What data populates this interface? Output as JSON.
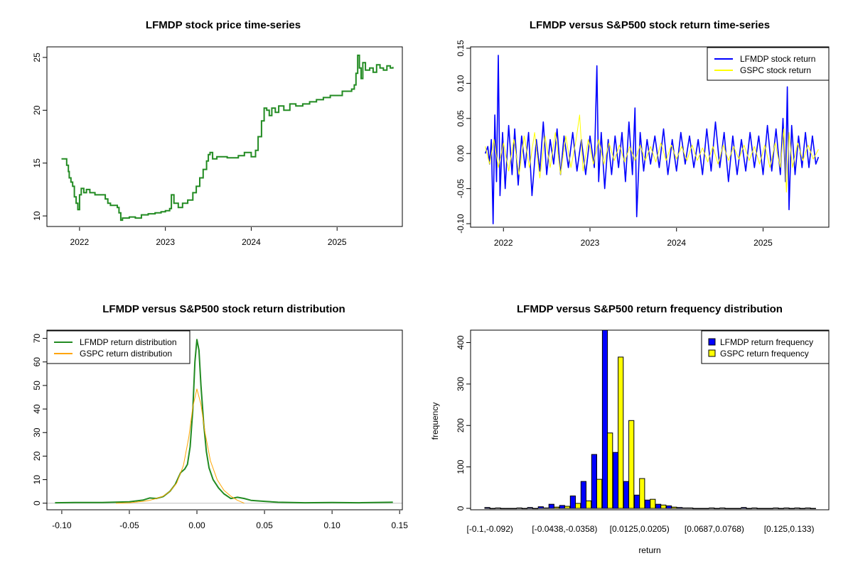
{
  "chart_data": [
    {
      "id": "price",
      "type": "line",
      "title": "LFMDP stock price time-series",
      "xlabel": "",
      "ylabel": "",
      "xlim": [
        2021.62,
        2025.76
      ],
      "ylim": [
        9.0,
        26.0
      ],
      "x_ticks": [
        {
          "v": 2022,
          "label": "2022"
        },
        {
          "v": 2023,
          "label": "2023"
        },
        {
          "v": 2024,
          "label": "2024"
        },
        {
          "v": 2025,
          "label": "2025"
        }
      ],
      "y_ticks": [
        {
          "v": 10,
          "label": "10"
        },
        {
          "v": 15,
          "label": "15"
        },
        {
          "v": 20,
          "label": "20"
        },
        {
          "v": 25,
          "label": "25"
        }
      ],
      "series": [
        {
          "name": "LFMDP price",
          "color": "#228B22",
          "x": [
            2021.79,
            2021.83,
            2021.85,
            2021.87,
            2021.88,
            2021.9,
            2021.92,
            2021.94,
            2021.96,
            2021.98,
            2022.0,
            2022.02,
            2022.05,
            2022.08,
            2022.12,
            2022.18,
            2022.24,
            2022.3,
            2022.33,
            2022.36,
            2022.4,
            2022.44,
            2022.46,
            2022.48,
            2022.5,
            2022.53,
            2022.58,
            2022.65,
            2022.72,
            2022.8,
            2022.88,
            2022.95,
            2023.0,
            2023.05,
            2023.07,
            2023.1,
            2023.15,
            2023.2,
            2023.26,
            2023.32,
            2023.36,
            2023.4,
            2023.44,
            2023.48,
            2023.5,
            2023.52,
            2023.55,
            2023.6,
            2023.66,
            2023.72,
            2023.78,
            2023.85,
            2023.92,
            2024.0,
            2024.05,
            2024.08,
            2024.12,
            2024.15,
            2024.18,
            2024.21,
            2024.24,
            2024.28,
            2024.32,
            2024.38,
            2024.45,
            2024.52,
            2024.6,
            2024.68,
            2024.76,
            2024.84,
            2024.92,
            2025.0,
            2025.06,
            2025.12,
            2025.17,
            2025.2,
            2025.22,
            2025.24,
            2025.26,
            2025.28,
            2025.3,
            2025.33,
            2025.38,
            2025.42,
            2025.46,
            2025.5,
            2025.54,
            2025.58,
            2025.62,
            2025.65
          ],
          "y": [
            15.4,
            15.4,
            14.8,
            14.2,
            13.6,
            13.2,
            12.8,
            11.8,
            11.2,
            10.6,
            12.0,
            12.6,
            12.2,
            12.5,
            12.2,
            12.0,
            12.0,
            11.6,
            11.2,
            11.0,
            11.0,
            10.8,
            10.3,
            9.6,
            9.8,
            9.8,
            9.9,
            9.8,
            10.1,
            10.2,
            10.3,
            10.4,
            10.5,
            10.7,
            12.0,
            11.2,
            10.8,
            11.2,
            11.5,
            12.2,
            12.8,
            13.6,
            14.4,
            15.2,
            15.8,
            16.0,
            15.4,
            15.6,
            15.6,
            15.5,
            15.5,
            15.7,
            16.0,
            15.6,
            16.2,
            17.5,
            19.0,
            20.2,
            20.0,
            19.5,
            20.2,
            19.8,
            20.4,
            20.0,
            20.6,
            20.4,
            20.6,
            20.8,
            21.0,
            21.2,
            21.4,
            21.4,
            21.8,
            21.8,
            22.0,
            22.4,
            23.5,
            25.2,
            24.0,
            23.0,
            24.5,
            23.8,
            24.0,
            23.6,
            24.3,
            24.0,
            23.8,
            24.2,
            24.0,
            24.1
          ]
        }
      ]
    },
    {
      "id": "returns",
      "type": "line",
      "title": "LFMDP versus S&P500 stock return time-series",
      "xlabel": "",
      "ylabel": "",
      "xlim": [
        2021.62,
        2025.76
      ],
      "ylim": [
        -0.105,
        0.152
      ],
      "x_ticks": [
        {
          "v": 2022,
          "label": "2022"
        },
        {
          "v": 2023,
          "label": "2023"
        },
        {
          "v": 2024,
          "label": "2024"
        },
        {
          "v": 2025,
          "label": "2025"
        }
      ],
      "y_ticks": [
        {
          "v": -0.1,
          "label": "-0.10"
        },
        {
          "v": -0.05,
          "label": "-0.05"
        },
        {
          "v": 0.0,
          "label": "0.00"
        },
        {
          "v": 0.05,
          "label": "0.05"
        },
        {
          "v": 0.1,
          "label": "0.10"
        },
        {
          "v": 0.15,
          "label": "0.15"
        }
      ],
      "legend": {
        "position": "top-right",
        "entries": [
          {
            "label": "LFMDP stock return",
            "color": "#0000FF"
          },
          {
            "label": "GSPC stock return",
            "color": "#FFFF00"
          }
        ]
      },
      "series": [
        {
          "name": "LFMDP stock return",
          "color": "#0000FF",
          "x": [
            2021.79,
            2021.82,
            2021.84,
            2021.86,
            2021.88,
            2021.9,
            2021.92,
            2021.94,
            2021.96,
            2021.99,
            2022.02,
            2022.06,
            2022.1,
            2022.13,
            2022.17,
            2022.21,
            2022.25,
            2022.29,
            2022.33,
            2022.38,
            2022.42,
            2022.46,
            2022.5,
            2022.54,
            2022.58,
            2022.62,
            2022.66,
            2022.7,
            2022.75,
            2022.8,
            2022.85,
            2022.9,
            2022.95,
            2023.0,
            2023.05,
            2023.08,
            2023.1,
            2023.13,
            2023.17,
            2023.21,
            2023.25,
            2023.29,
            2023.33,
            2023.37,
            2023.41,
            2023.45,
            2023.49,
            2023.52,
            2023.54,
            2023.58,
            2023.62,
            2023.66,
            2023.7,
            2023.75,
            2023.8,
            2023.85,
            2023.9,
            2023.95,
            2024.0,
            2024.05,
            2024.1,
            2024.15,
            2024.2,
            2024.25,
            2024.3,
            2024.35,
            2024.4,
            2024.45,
            2024.5,
            2024.55,
            2024.6,
            2024.65,
            2024.7,
            2024.75,
            2024.8,
            2024.85,
            2024.9,
            2024.95,
            2025.0,
            2025.05,
            2025.1,
            2025.15,
            2025.2,
            2025.23,
            2025.26,
            2025.28,
            2025.3,
            2025.33,
            2025.37,
            2025.41,
            2025.45,
            2025.49,
            2025.53,
            2025.57,
            2025.61,
            2025.64
          ],
          "y": [
            0.0,
            0.01,
            -0.015,
            0.02,
            -0.1,
            0.055,
            -0.04,
            0.14,
            -0.06,
            0.03,
            -0.05,
            0.04,
            -0.03,
            0.035,
            -0.045,
            0.025,
            -0.02,
            0.03,
            -0.06,
            0.02,
            -0.025,
            0.045,
            -0.03,
            0.02,
            -0.015,
            0.035,
            -0.03,
            0.025,
            -0.02,
            0.03,
            -0.025,
            0.02,
            -0.03,
            0.025,
            -0.02,
            0.125,
            -0.04,
            0.03,
            -0.05,
            0.02,
            -0.03,
            0.025,
            -0.02,
            0.03,
            -0.04,
            0.045,
            -0.03,
            0.065,
            -0.09,
            0.03,
            -0.025,
            0.02,
            -0.015,
            0.025,
            -0.02,
            0.035,
            -0.03,
            0.02,
            -0.025,
            0.03,
            -0.015,
            0.025,
            -0.02,
            0.02,
            -0.03,
            0.035,
            -0.025,
            0.045,
            -0.02,
            0.03,
            -0.04,
            0.025,
            -0.03,
            0.02,
            -0.025,
            0.03,
            -0.02,
            0.025,
            -0.03,
            0.04,
            -0.025,
            0.035,
            -0.03,
            0.05,
            -0.04,
            0.095,
            -0.08,
            0.04,
            -0.03,
            0.025,
            -0.02,
            0.03,
            -0.02,
            0.025,
            -0.015,
            -0.005
          ]
        },
        {
          "name": "GSPC stock return",
          "color": "#FFFF00",
          "x": [
            2021.79,
            2021.84,
            2021.89,
            2021.94,
            2022.0,
            2022.06,
            2022.12,
            2022.18,
            2022.24,
            2022.3,
            2022.36,
            2022.42,
            2022.48,
            2022.54,
            2022.6,
            2022.66,
            2022.72,
            2022.78,
            2022.84,
            2022.88,
            2022.92,
            2022.98,
            2023.04,
            2023.1,
            2023.16,
            2023.22,
            2023.28,
            2023.34,
            2023.4,
            2023.46,
            2023.52,
            2023.58,
            2023.64,
            2023.7,
            2023.76,
            2023.82,
            2023.88,
            2023.94,
            2024.0,
            2024.06,
            2024.12,
            2024.18,
            2024.24,
            2024.3,
            2024.36,
            2024.42,
            2024.48,
            2024.54,
            2024.6,
            2024.66,
            2024.72,
            2024.78,
            2024.84,
            2024.9,
            2024.96,
            2025.02,
            2025.08,
            2025.14,
            2025.2,
            2025.24,
            2025.27,
            2025.3,
            2025.34,
            2025.4,
            2025.46,
            2025.52,
            2025.58,
            2025.64
          ],
          "y": [
            0.01,
            -0.015,
            0.02,
            -0.02,
            0.015,
            -0.025,
            0.02,
            -0.03,
            0.025,
            -0.02,
            0.03,
            -0.035,
            0.025,
            -0.02,
            0.03,
            -0.03,
            0.025,
            -0.02,
            0.02,
            0.055,
            -0.025,
            0.02,
            -0.015,
            0.02,
            -0.015,
            0.015,
            -0.01,
            0.012,
            -0.012,
            0.01,
            -0.01,
            0.012,
            -0.01,
            0.01,
            -0.012,
            0.015,
            -0.01,
            0.012,
            -0.008,
            0.01,
            -0.01,
            0.012,
            -0.01,
            0.008,
            -0.012,
            0.01,
            -0.015,
            0.012,
            -0.01,
            0.01,
            -0.008,
            0.012,
            -0.01,
            0.01,
            -0.015,
            0.012,
            -0.02,
            0.015,
            -0.02,
            0.035,
            -0.055,
            0.03,
            -0.02,
            0.015,
            -0.01,
            0.012,
            -0.008,
            0.006
          ]
        }
      ]
    },
    {
      "id": "density",
      "type": "line",
      "title": "LFMDP versus S&P500 stock return distribution",
      "xlabel": "",
      "ylabel": "",
      "xlim": [
        -0.111,
        0.152
      ],
      "ylim": [
        -2.8,
        73.5
      ],
      "x_ticks": [
        {
          "v": -0.1,
          "label": "-0.10"
        },
        {
          "v": -0.05,
          "label": "-0.05"
        },
        {
          "v": 0.0,
          "label": "0.00"
        },
        {
          "v": 0.05,
          "label": "0.05"
        },
        {
          "v": 0.1,
          "label": "0.10"
        },
        {
          "v": 0.15,
          "label": "0.15"
        }
      ],
      "y_ticks": [
        {
          "v": 0,
          "label": "0"
        },
        {
          "v": 10,
          "label": "10"
        },
        {
          "v": 20,
          "label": "20"
        },
        {
          "v": 30,
          "label": "30"
        },
        {
          "v": 40,
          "label": "40"
        },
        {
          "v": 50,
          "label": "50"
        },
        {
          "v": 60,
          "label": "60"
        },
        {
          "v": 70,
          "label": "70"
        }
      ],
      "legend": {
        "position": "top-left",
        "entries": [
          {
            "label": "LFMDP return distribution",
            "color": "#228B22"
          },
          {
            "label": "GSPC return distribution",
            "color": "#FFA500"
          }
        ]
      },
      "series": [
        {
          "name": "LFMDP return distribution",
          "color": "#228B22",
          "x": [
            -0.105,
            -0.09,
            -0.07,
            -0.05,
            -0.04,
            -0.035,
            -0.03,
            -0.025,
            -0.02,
            -0.016,
            -0.012,
            -0.009,
            -0.007,
            -0.005,
            -0.003,
            -0.0015,
            0.0,
            0.0015,
            0.003,
            0.005,
            0.007,
            0.009,
            0.012,
            0.016,
            0.02,
            0.025,
            0.03,
            0.035,
            0.04,
            0.05,
            0.06,
            0.08,
            0.1,
            0.12,
            0.145
          ],
          "y": [
            0.2,
            0.3,
            0.3,
            0.6,
            1.3,
            2.2,
            2.0,
            2.8,
            5.0,
            8.0,
            13.0,
            14.5,
            16.5,
            24.0,
            40.0,
            60.0,
            69.5,
            65.0,
            50.0,
            34.0,
            22.0,
            15.0,
            10.0,
            6.5,
            4.0,
            2.0,
            2.5,
            2.0,
            1.2,
            0.8,
            0.4,
            0.2,
            0.3,
            0.2,
            0.4
          ]
        },
        {
          "name": "GSPC return distribution",
          "color": "#FFA500",
          "x": [
            -0.06,
            -0.05,
            -0.04,
            -0.035,
            -0.03,
            -0.025,
            -0.02,
            -0.015,
            -0.01,
            -0.006,
            -0.003,
            0.0,
            0.003,
            0.006,
            0.01,
            0.015,
            0.02,
            0.025,
            0.03,
            0.035
          ],
          "y": [
            0.0,
            0.2,
            0.8,
            1.2,
            2.0,
            3.0,
            5.0,
            8.5,
            16.0,
            28.0,
            41.0,
            48.5,
            42.0,
            30.0,
            18.0,
            10.0,
            5.5,
            3.0,
            1.2,
            0.0
          ]
        }
      ]
    },
    {
      "id": "hist",
      "type": "bar",
      "title": "LFMDP versus S&P500 return frequency distribution",
      "xlabel": "return",
      "ylabel": "frequency",
      "ylim": [
        0,
        430
      ],
      "y_ticks": [
        {
          "v": 0,
          "label": "0"
        },
        {
          "v": 100,
          "label": "100"
        },
        {
          "v": 200,
          "label": "200"
        },
        {
          "v": 300,
          "label": "300"
        },
        {
          "v": 400,
          "label": "400"
        }
      ],
      "category_labels_shown": [
        {
          "index": 0,
          "label": "[-0.1,-0.092)"
        },
        {
          "index": 7,
          "label": "[-0.0438,-0.0358)"
        },
        {
          "index": 14,
          "label": "[0.0125,0.0205)"
        },
        {
          "index": 21,
          "label": "[0.0687,0.0768)"
        },
        {
          "index": 28,
          "label": "[0.125,0.133)"
        }
      ],
      "legend": {
        "position": "top-right",
        "entries": [
          {
            "label": "LFMDP return frequency",
            "color": "#0000FF"
          },
          {
            "label": "GSPC return frequency",
            "color": "#FFFF00"
          }
        ]
      },
      "series": [
        {
          "name": "LFMDP return frequency",
          "color": "#0000FF",
          "values": [
            2,
            1,
            0,
            1,
            2,
            4,
            10,
            7,
            30,
            65,
            130,
            430,
            135,
            65,
            32,
            20,
            10,
            6,
            2,
            1,
            0,
            1,
            1,
            0,
            2,
            1,
            0,
            1,
            1,
            1,
            1
          ]
        },
        {
          "name": "GSPC return frequency",
          "color": "#FFFF00",
          "values": [
            0,
            0,
            0,
            0,
            0,
            1,
            3,
            5,
            12,
            18,
            70,
            182,
            365,
            212,
            72,
            22,
            8,
            3,
            1,
            0,
            0,
            0,
            0,
            0,
            0,
            0,
            0,
            0,
            0,
            0,
            0
          ]
        }
      ]
    }
  ]
}
